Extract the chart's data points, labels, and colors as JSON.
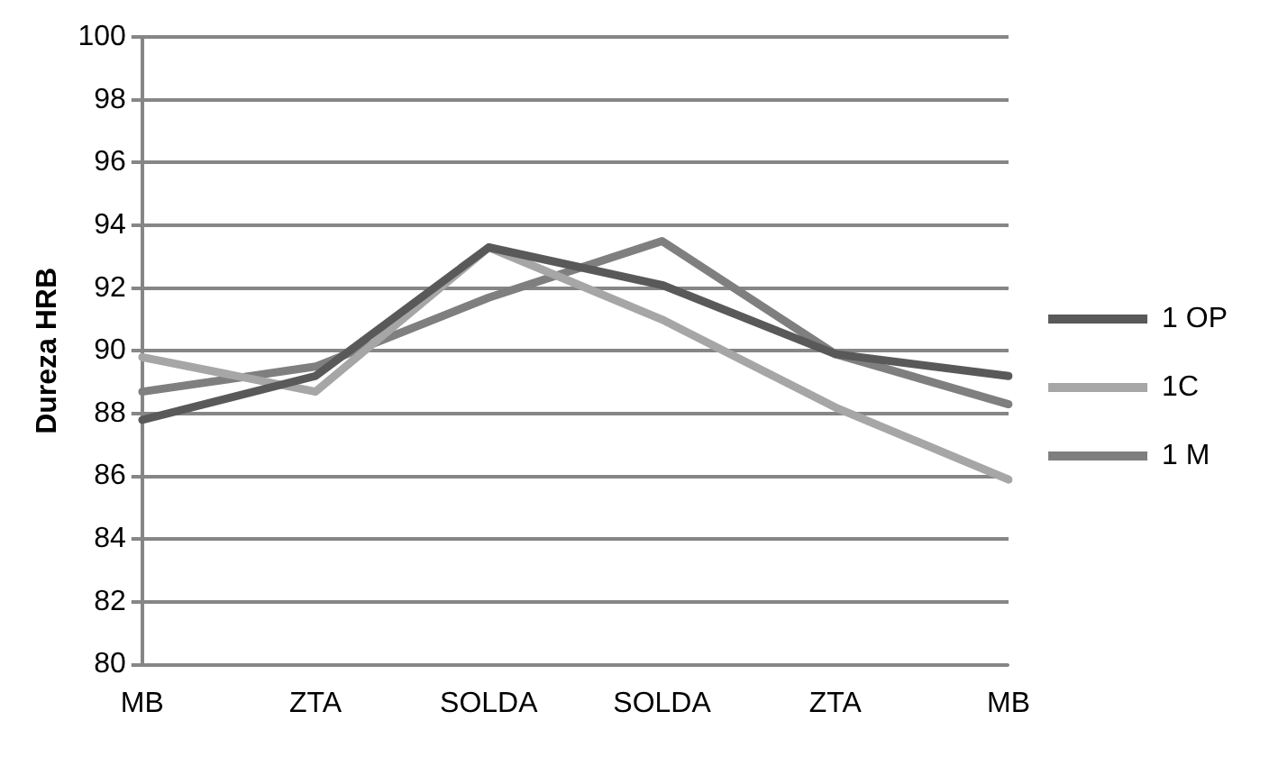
{
  "chart_data": {
    "type": "line",
    "ylabel": "Dureza HRB",
    "categories": [
      "MB",
      "ZTA",
      "SOLDA",
      "SOLDA",
      "ZTA",
      "MB"
    ],
    "series": [
      {
        "name": "1 OP",
        "color": "#595959",
        "values": [
          87.8,
          89.2,
          93.3,
          92.1,
          89.9,
          89.2
        ]
      },
      {
        "name": "1C",
        "color": "#a6a6a6",
        "values": [
          89.8,
          88.7,
          93.3,
          91.0,
          88.2,
          85.9
        ]
      },
      {
        "name": "1 M",
        "color": "#7f7f7f",
        "values": [
          88.7,
          89.5,
          91.7,
          93.5,
          89.9,
          88.3
        ]
      }
    ],
    "ylim": [
      80,
      100
    ],
    "yticks": [
      80,
      82,
      84,
      86,
      88,
      90,
      92,
      94,
      96,
      98,
      100
    ],
    "grid": "y",
    "legend": "right",
    "marker": "none"
  }
}
